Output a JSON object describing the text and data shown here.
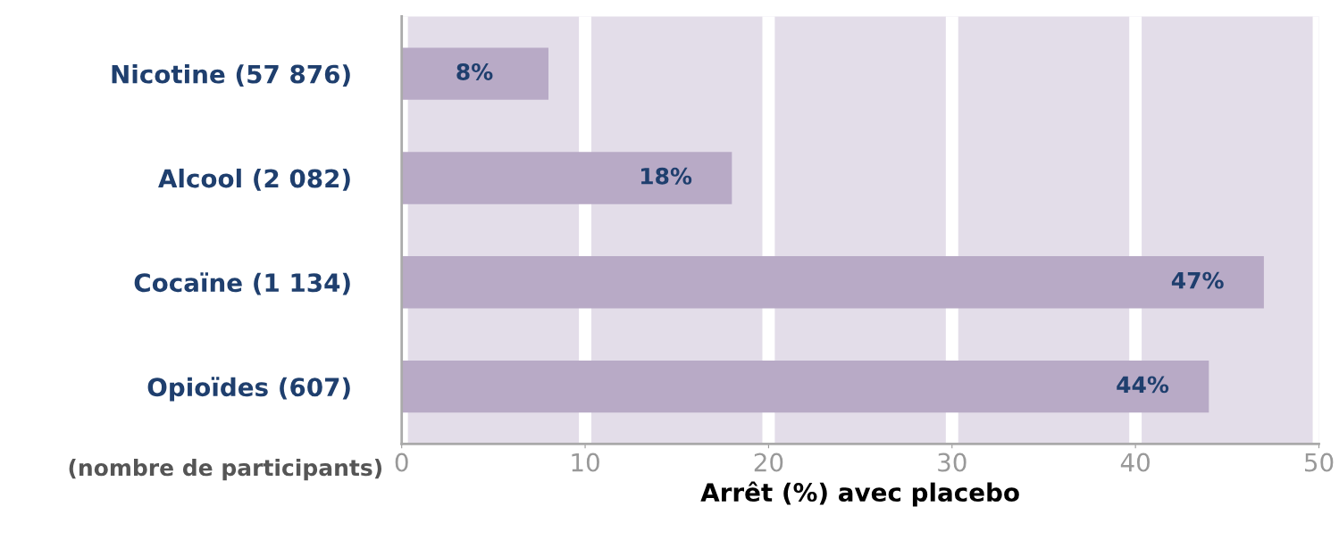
{
  "chart_data": {
    "type": "bar",
    "orientation": "horizontal",
    "categories": [
      "Nicotine (57 876)",
      "Alcool (2 082)",
      "Cocaïne (1 134)",
      "Opioïdes (607)"
    ],
    "values": [
      8,
      18,
      47,
      44
    ],
    "value_labels": [
      "8%",
      "18%",
      "47%",
      "44%"
    ],
    "color": "#b8aac6",
    "xlabel": "Arrêt (%) avec placebo",
    "annotations": [
      "(nombre de participants)"
    ],
    "xlim": [
      0,
      50
    ],
    "xticks": [
      0,
      10,
      20,
      30,
      40,
      50
    ],
    "grid": "x"
  }
}
